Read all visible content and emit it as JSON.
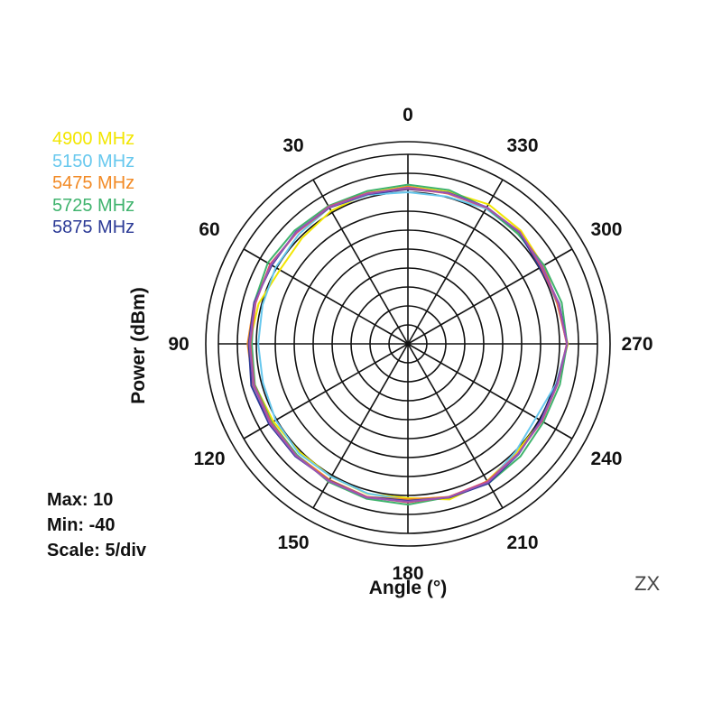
{
  "chart_data": {
    "type": "polar-line",
    "rlim": [
      -40,
      10
    ],
    "r_step": 5,
    "angle_direction": "counterclockwise",
    "angle_zero": "top",
    "angle_ticks": [
      0,
      30,
      60,
      90,
      120,
      150,
      180,
      210,
      240,
      270,
      300,
      330
    ],
    "angle_tick_labels": [
      "0",
      "30",
      "60",
      "90",
      "120",
      "150",
      "180",
      "210",
      "240",
      "270",
      "300",
      "330"
    ],
    "ylabel": "Power (dBm)",
    "xlabel": "Angle (°)",
    "annotations": [
      "Max: 10",
      "Min: -40",
      "Scale: 5/div"
    ],
    "tag": "ZX",
    "legend_position": "top-left",
    "angles": [
      0,
      15,
      30,
      45,
      60,
      75,
      90,
      105,
      120,
      135,
      150,
      165,
      180,
      195,
      210,
      225,
      240,
      255,
      270,
      285,
      300,
      315,
      330,
      345
    ],
    "series": [
      {
        "name": "4900 MHz",
        "color": "#f2e600",
        "values": [
          1.5,
          1.2,
          0.5,
          -0.5,
          -1.0,
          0.8,
          1.8,
          1.8,
          1.0,
          0.4,
          0.5,
          1.0,
          0.7,
          2.5,
          1.8,
          0.5,
          0.6,
          0.8,
          2.2,
          0.8,
          1.2,
          2.2,
          2.5,
          1.5
        ]
      },
      {
        "name": "5150 MHz",
        "color": "#67c8ee",
        "values": [
          0.0,
          0.7,
          1.5,
          0.8,
          0.3,
          -0.3,
          -0.5,
          -0.4,
          0.3,
          0.8,
          0.5,
          0.9,
          1.2,
          1.8,
          2.2,
          0.2,
          -1.0,
          0.5,
          2.0,
          0.8,
          0.6,
          1.2,
          1.2,
          0.2
        ]
      },
      {
        "name": "5475 MHz",
        "color": "#f28a25",
        "values": [
          1.5,
          0.9,
          1.5,
          1.5,
          1.8,
          2.0,
          2.3,
          2.3,
          1.5,
          1.5,
          1.4,
          1.8,
          1.0,
          1.8,
          2.0,
          1.0,
          0.6,
          0.7,
          2.0,
          0.8,
          1.4,
          1.5,
          1.5,
          1.0
        ]
      },
      {
        "name": "5725 MHz",
        "color": "#3fb36d",
        "values": [
          2.0,
          1.7,
          2.0,
          2.3,
          2.7,
          2.0,
          1.2,
          1.8,
          1.5,
          1.4,
          2.0,
          2.3,
          2.4,
          1.8,
          2.5,
          2.0,
          1.3,
          1.5,
          2.0,
          2.0,
          1.5,
          1.0,
          1.5,
          2.0
        ]
      },
      {
        "name": "5875 MHz",
        "color": "#2b3a96",
        "values": [
          0.8,
          0.9,
          1.5,
          1.8,
          1.5,
          2.0,
          2.0,
          2.8,
          2.3,
          2.0,
          1.6,
          1.8,
          1.4,
          2.0,
          2.5,
          1.2,
          0.4,
          0.7,
          2.0,
          1.3,
          0.2,
          1.6,
          1.6,
          1.3
        ]
      },
      {
        "name": "",
        "color": "#e0506a",
        "values": [
          1.0,
          1.2,
          1.8,
          1.5,
          2.0,
          1.6,
          1.6,
          2.0,
          1.7,
          1.7,
          1.7,
          1.8,
          1.8,
          1.8,
          1.9,
          1.0,
          0.8,
          0.9,
          1.9,
          1.0,
          0.6,
          1.8,
          1.5,
          1.1
        ]
      },
      {
        "name": "",
        "color": "#9a55b5",
        "values": [
          1.2,
          1.0,
          1.6,
          1.7,
          1.7,
          1.8,
          1.8,
          2.2,
          2.0,
          1.8,
          1.8,
          2.0,
          1.6,
          1.9,
          2.2,
          1.1,
          0.6,
          0.8,
          2.0,
          1.2,
          0.9,
          1.7,
          1.6,
          1.2
        ]
      }
    ]
  }
}
